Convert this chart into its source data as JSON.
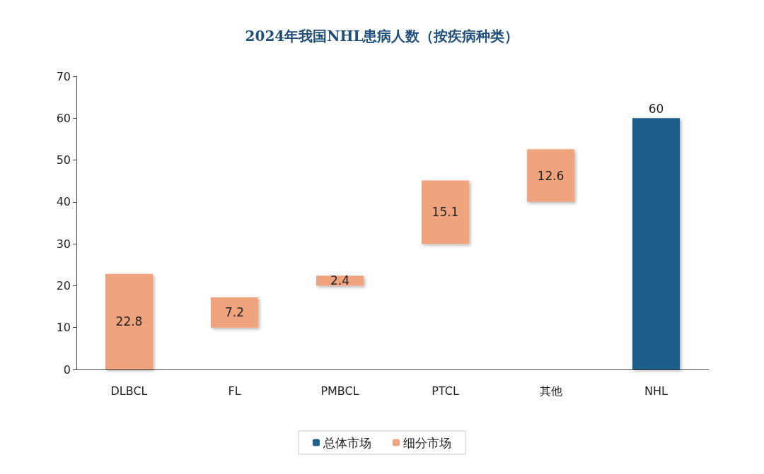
{
  "chart_data": {
    "type": "bar",
    "title": "2024年我国NHL患病人数（按疾病种类）",
    "categories": [
      "DLBCL",
      "FL",
      "PMBCL",
      "PTCL",
      "其他",
      "NHL"
    ],
    "series": [
      {
        "name": "总体市场",
        "color": "#1f5f8a",
        "values": [
          null,
          null,
          null,
          null,
          null,
          60
        ]
      },
      {
        "name": "细分市场",
        "color": "#f0a47e",
        "values": [
          22.8,
          7.2,
          2.4,
          15.1,
          12.6,
          null
        ],
        "base": [
          0,
          10,
          20,
          30,
          40,
          null
        ]
      }
    ],
    "ylim": [
      0,
      70
    ],
    "yticks": [
      0,
      10,
      20,
      30,
      40,
      50,
      60,
      70
    ],
    "grid": false,
    "legend": "bottom",
    "data_labels": true
  }
}
